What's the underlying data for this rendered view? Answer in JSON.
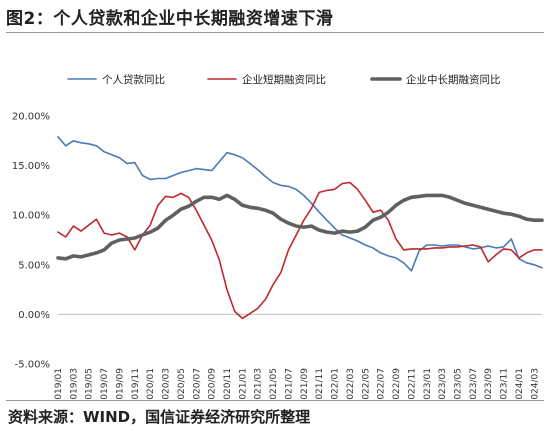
{
  "figure": {
    "title": "图2：个人贷款和企业中长期融资增速下滑",
    "source": "资料来源：WIND，国信证券经济研究所整理"
  },
  "chart_data": {
    "type": "line",
    "x": [
      "2019/01",
      "2019/02",
      "2019/03",
      "2019/04",
      "2019/05",
      "2019/06",
      "2019/07",
      "2019/08",
      "2019/09",
      "2019/10",
      "2019/11",
      "2019/12",
      "2020/01",
      "2020/02",
      "2020/03",
      "2020/04",
      "2020/05",
      "2020/06",
      "2020/07",
      "2020/08",
      "2020/09",
      "2020/10",
      "2020/11",
      "2020/12",
      "2021/01",
      "2021/02",
      "2021/03",
      "2021/04",
      "2021/05",
      "2021/06",
      "2021/07",
      "2021/08",
      "2021/09",
      "2021/10",
      "2021/11",
      "2021/12",
      "2022/01",
      "2022/02",
      "2022/03",
      "2022/04",
      "2022/05",
      "2022/06",
      "2022/07",
      "2022/08",
      "2022/09",
      "2022/10",
      "2022/11",
      "2022/12",
      "2023/01",
      "2023/02",
      "2023/03",
      "2023/04",
      "2023/05",
      "2023/06",
      "2023/07",
      "2023/08",
      "2023/09",
      "2023/10",
      "2023/11",
      "2023/12",
      "2024/01",
      "2024/02",
      "2024/03",
      "2024/04"
    ],
    "x_tick_labels": [
      "2019/01",
      "2019/03",
      "2019/05",
      "2019/07",
      "2019/09",
      "2019/11",
      "2020/01",
      "2020/03",
      "2020/05",
      "2020/07",
      "2020/09",
      "2020/11",
      "2021/01",
      "2021/03",
      "2021/05",
      "2021/07",
      "2021/09",
      "2021/11",
      "2022/01",
      "2022/03",
      "2022/05",
      "2022/07",
      "2022/09",
      "2022/11",
      "2023/01",
      "2023/03",
      "2023/05",
      "2023/07",
      "2023/09",
      "2023/11",
      "2024/01",
      "2024/03"
    ],
    "y_tick_labels": [
      "20.00%",
      "15.00%",
      "10.00%",
      "5.00%",
      "0.00%",
      "-5.00%"
    ],
    "ylim": [
      -5,
      20
    ],
    "y_ticks": [
      20,
      15,
      10,
      5,
      0,
      -5
    ],
    "legend_position": "top",
    "series": [
      {
        "name": "个人贷款同比",
        "color": "#4a7bb7",
        "values": [
          17.9,
          17.0,
          17.5,
          17.3,
          17.2,
          17.0,
          16.4,
          16.1,
          15.8,
          15.2,
          15.3,
          14.0,
          13.6,
          13.7,
          13.7,
          14.0,
          14.3,
          14.5,
          14.7,
          14.6,
          14.5,
          15.4,
          16.3,
          16.1,
          15.8,
          15.2,
          14.6,
          13.9,
          13.3,
          13.0,
          12.9,
          12.6,
          12.0,
          11.2,
          10.3,
          9.5,
          8.7,
          8.0,
          7.7,
          7.4,
          7.0,
          6.7,
          6.2,
          5.9,
          5.7,
          5.2,
          4.4,
          6.4,
          7.0,
          7.0,
          6.9,
          7.0,
          7.0,
          6.8,
          6.6,
          6.7,
          6.9,
          6.7,
          6.8,
          7.6,
          5.6,
          5.2,
          5.0,
          4.7
        ]
      },
      {
        "name": "企业短期融资同比",
        "color": "#c0282b",
        "values": [
          8.3,
          7.8,
          8.9,
          8.4,
          9.0,
          9.6,
          8.2,
          8.0,
          8.2,
          7.8,
          6.5,
          8.0,
          9.0,
          11.0,
          11.9,
          11.8,
          12.2,
          11.8,
          10.5,
          9.0,
          7.5,
          5.5,
          2.5,
          0.3,
          -0.4,
          0.1,
          0.6,
          1.5,
          3.0,
          4.2,
          6.5,
          8.0,
          9.5,
          10.7,
          12.3,
          12.5,
          12.6,
          13.2,
          13.3,
          12.6,
          11.5,
          10.3,
          10.5,
          9.5,
          7.6,
          6.5,
          6.6,
          6.6,
          6.6,
          6.7,
          6.7,
          6.8,
          6.8,
          6.9,
          7.0,
          6.8,
          5.3,
          6.0,
          6.6,
          6.5,
          5.7,
          6.2,
          6.5,
          6.5
        ]
      },
      {
        "name": "企业中长期融资同比",
        "color": "#606060",
        "values": [
          5.7,
          5.6,
          5.9,
          5.8,
          6.0,
          6.2,
          6.5,
          7.2,
          7.5,
          7.6,
          7.7,
          8.0,
          8.3,
          8.7,
          9.5,
          10.0,
          10.6,
          10.9,
          11.4,
          11.8,
          11.8,
          11.6,
          12.0,
          11.6,
          11.0,
          10.8,
          10.7,
          10.5,
          10.2,
          9.6,
          9.2,
          8.9,
          8.8,
          8.9,
          8.5,
          8.3,
          8.2,
          8.4,
          8.3,
          8.4,
          8.8,
          9.5,
          9.8,
          10.3,
          11.0,
          11.5,
          11.8,
          11.9,
          12.0,
          12.0,
          12.0,
          11.8,
          11.5,
          11.2,
          11.0,
          10.8,
          10.6,
          10.4,
          10.2,
          10.1,
          9.9,
          9.6,
          9.5,
          9.5
        ]
      }
    ]
  }
}
